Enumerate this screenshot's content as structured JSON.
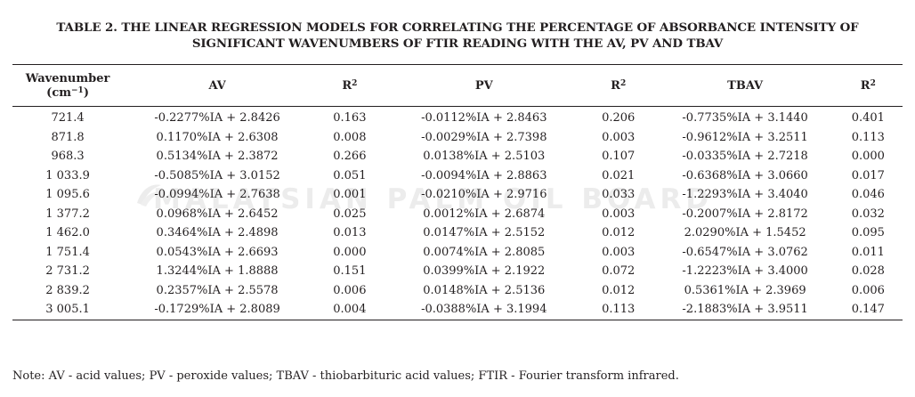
{
  "caption": {
    "line1": "TABLE 2. THE LINEAR REGRESSION MODELS FOR CORRELATING THE PERCENTAGE OF ABSORBANCE INTENSITY OF",
    "line2": "SIGNIFICANT WAVENUMBERS OF FTIR READING WITH THE AV, PV AND TBAV"
  },
  "watermark": "MALAYSIAN PALM OIL BOARD",
  "headers": {
    "wavenumber": "Wavenumber",
    "wavenumber_unit_pre": "(cm",
    "wavenumber_unit_exp": "−1",
    "wavenumber_unit_post": ")",
    "av": "AV",
    "r2_base": "R",
    "r2_exp": "2",
    "pv": "PV",
    "tbav": "TBAV"
  },
  "rows": [
    {
      "wn": "721.4",
      "av": "-0.2277%IA + 2.8426",
      "r2_av": "0.163",
      "pv": "-0.0112%IA + 2.8463",
      "r2_pv": "0.206",
      "tbav": "-0.7735%IA + 3.1440",
      "r2_tbav": "0.401"
    },
    {
      "wn": "871.8",
      "av": "0.1170%IA + 2.6308",
      "r2_av": "0.008",
      "pv": "-0.0029%IA + 2.7398",
      "r2_pv": "0.003",
      "tbav": "-0.9612%IA + 3.2511",
      "r2_tbav": "0.113"
    },
    {
      "wn": "968.3",
      "av": "0.5134%IA + 2.3872",
      "r2_av": "0.266",
      "pv": "0.0138%IA + 2.5103",
      "r2_pv": "0.107",
      "tbav": "-0.0335%IA + 2.7218",
      "r2_tbav": "0.000"
    },
    {
      "wn": "1 033.9",
      "av": "-0.5085%IA + 3.0152",
      "r2_av": "0.051",
      "pv": "-0.0094%IA + 2.8863",
      "r2_pv": "0.021",
      "tbav": "-0.6368%IA + 3.0660",
      "r2_tbav": "0.017"
    },
    {
      "wn": "1 095.6",
      "av": "-0.0994%IA + 2.7638",
      "r2_av": "0.001",
      "pv": "-0.0210%IA + 2.9716",
      "r2_pv": "0.033",
      "tbav": "-1.2293%IA + 3.4040",
      "r2_tbav": "0.046"
    },
    {
      "wn": "1 377.2",
      "av": "0.0968%IA + 2.6452",
      "r2_av": "0.025",
      "pv": "0.0012%IA + 2.6874",
      "r2_pv": "0.003",
      "tbav": "-0.2007%IA + 2.8172",
      "r2_tbav": "0.032"
    },
    {
      "wn": "1 462.0",
      "av": "0.3464%IA + 2.4898",
      "r2_av": "0.013",
      "pv": "0.0147%IA + 2.5152",
      "r2_pv": "0.012",
      "tbav": "2.0290%IA + 1.5452",
      "r2_tbav": "0.095"
    },
    {
      "wn": "1 751.4",
      "av": "0.0543%IA + 2.6693",
      "r2_av": "0.000",
      "pv": "0.0074%IA + 2.8085",
      "r2_pv": "0.003",
      "tbav": "-0.6547%IA + 3.0762",
      "r2_tbav": "0.011"
    },
    {
      "wn": "2 731.2",
      "av": "1.3244%IA + 1.8888",
      "r2_av": "0.151",
      "pv": "0.0399%IA + 2.1922",
      "r2_pv": "0.072",
      "tbav": "-1.2223%IA + 3.4000",
      "r2_tbav": "0.028"
    },
    {
      "wn": "2 839.2",
      "av": "0.2357%IA + 2.5578",
      "r2_av": "0.006",
      "pv": "0.0148%IA + 2.5136",
      "r2_pv": "0.012",
      "tbav": "0.5361%IA + 2.3969",
      "r2_tbav": "0.006"
    },
    {
      "wn": "3 005.1",
      "av": "-0.1729%IA + 2.8089",
      "r2_av": "0.004",
      "pv": "-0.0388%IA + 3.1994",
      "r2_pv": "0.113",
      "tbav": "-2.1883%IA + 3.9511",
      "r2_tbav": "0.147"
    }
  ],
  "note": "Note: AV - acid values; PV - peroxide values; TBAV - thiobarbituric acid values; FTIR - Fourier transform infrared."
}
